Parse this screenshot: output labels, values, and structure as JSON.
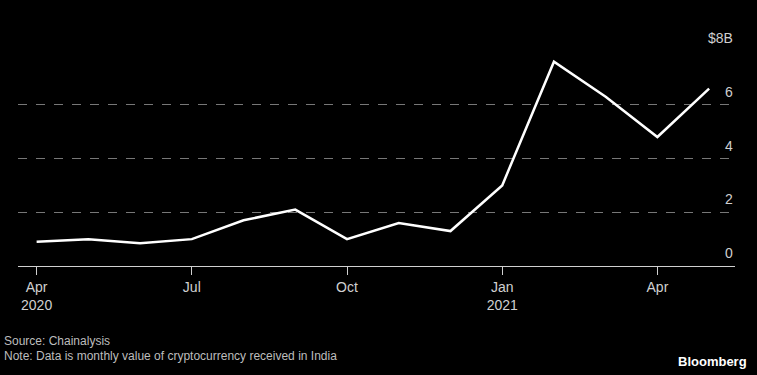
{
  "chart_data": {
    "type": "line",
    "categories": [
      "Apr\n2020",
      null,
      null,
      "Jul",
      null,
      null,
      "Oct",
      null,
      null,
      "Jan\n2021",
      null,
      null,
      "Apr",
      null
    ],
    "values": [
      0.9,
      1.0,
      0.85,
      1.0,
      1.7,
      2.1,
      1.0,
      1.6,
      1.3,
      3.0,
      7.6,
      6.3,
      4.8,
      6.6
    ],
    "color": "#ffffff",
    "ylim": [
      0,
      8
    ],
    "yticks": [
      0,
      2,
      4,
      6,
      {
        "value": 8,
        "label": "$8B"
      }
    ],
    "grid": true,
    "source": "Source: Chainalysis",
    "note": "Note: Data is monthly value of cryptocurrency received in India",
    "credit": "Bloomberg"
  }
}
